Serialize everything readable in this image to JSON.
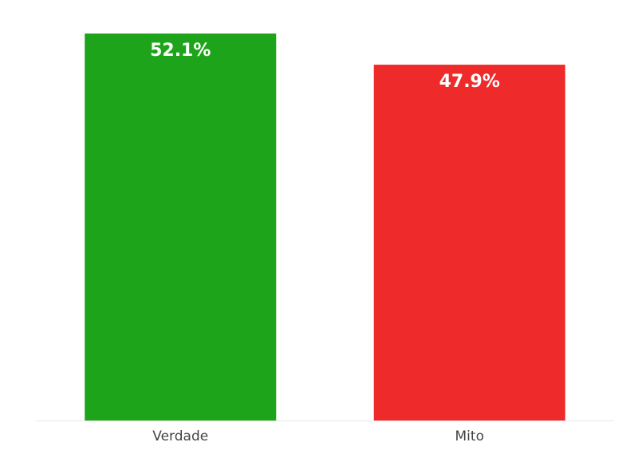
{
  "chart_data": {
    "type": "bar",
    "categories": [
      "Verdade",
      "Mito"
    ],
    "values": [
      52.1,
      47.9
    ],
    "value_labels": [
      "52.1%",
      "47.9%"
    ],
    "colors": [
      "#1ea41a",
      "#ee2a2a"
    ]
  }
}
